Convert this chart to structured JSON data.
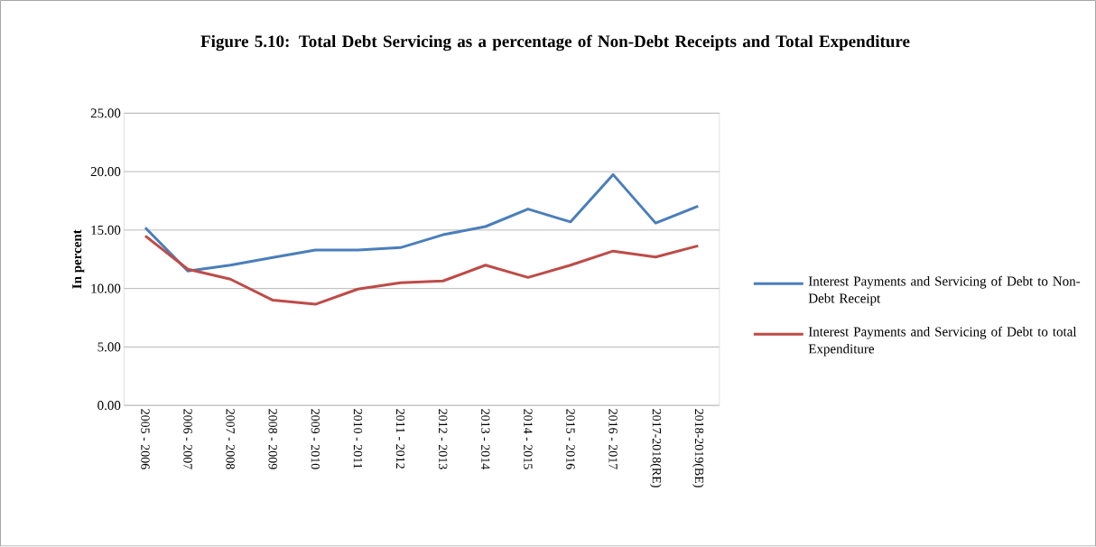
{
  "chart_data": {
    "type": "line",
    "title": "Figure 5.10: Total Debt Servicing as a percentage of Non-Debt Receipts and Total Expenditure",
    "ylabel": "In percent",
    "categories": [
      "2005 - 2006",
      "2006 - 2007",
      "2007 - 2008",
      "2008 - 2009",
      "2009 - 2010",
      "2010 - 2011",
      "2011 - 2012",
      "2012 - 2013",
      "2013 - 2014",
      "2014 - 2015",
      "2015 - 2016",
      "2016 - 2017",
      "2017-2018(RE)",
      "2018-2019(BE)"
    ],
    "series": [
      {
        "name": "Interest Payments and Servicing of Debt to Non-Debt Receipt",
        "color": "#4a7ebb",
        "values": [
          15.2,
          11.5,
          12.0,
          12.65,
          13.3,
          13.3,
          13.5,
          14.6,
          15.3,
          16.8,
          15.7,
          19.75,
          15.6,
          17.05
        ]
      },
      {
        "name": "Interest Payments and Servicing of Debt to total Expenditure",
        "color": "#be4b48",
        "values": [
          14.5,
          11.65,
          10.8,
          9.0,
          8.65,
          9.95,
          10.5,
          10.65,
          12.0,
          10.95,
          12.0,
          13.2,
          12.7,
          13.65
        ]
      }
    ],
    "ylim": [
      0,
      25
    ],
    "yticks": [
      {
        "value": 0,
        "label": "0.00"
      },
      {
        "value": 5,
        "label": "5.00"
      },
      {
        "value": 10,
        "label": "10.00"
      },
      {
        "value": 15,
        "label": "15.00"
      },
      {
        "value": 20,
        "label": "20.00"
      },
      {
        "value": 25,
        "label": "25.00"
      }
    ],
    "grid": "y",
    "legend": "right",
    "marker": "none",
    "line_style": "solid"
  }
}
